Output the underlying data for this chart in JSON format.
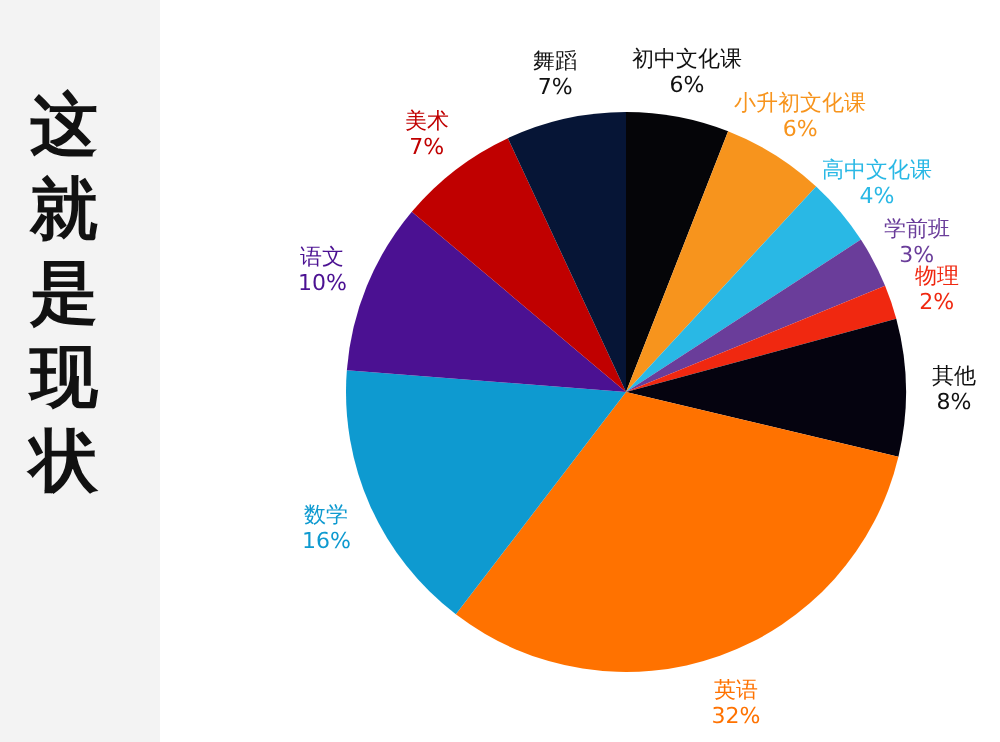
{
  "chart_data": {
    "type": "pie",
    "title": "这就是现状",
    "categories": [
      "初中文化课",
      "小升初文化课",
      "高中文化课",
      "学前班",
      "物理",
      "其他",
      "英语",
      "数学",
      "语文",
      "美术",
      "舞蹈"
    ],
    "values": [
      6,
      6,
      4,
      3,
      2,
      8,
      32,
      16,
      10,
      7,
      7
    ],
    "value_labels": [
      "6%",
      "6%",
      "4%",
      "3%",
      "2%",
      "8%",
      "32%",
      "16%",
      "10%",
      "7%",
      "7%"
    ],
    "colors": [
      "#050508",
      "#f7941d",
      "#29b8e5",
      "#6a3d9a",
      "#f02810",
      "#05030f",
      "#ff7200",
      "#0e9ad0",
      "#4b1192",
      "#c00000",
      "#061536"
    ],
    "legend": false
  }
}
